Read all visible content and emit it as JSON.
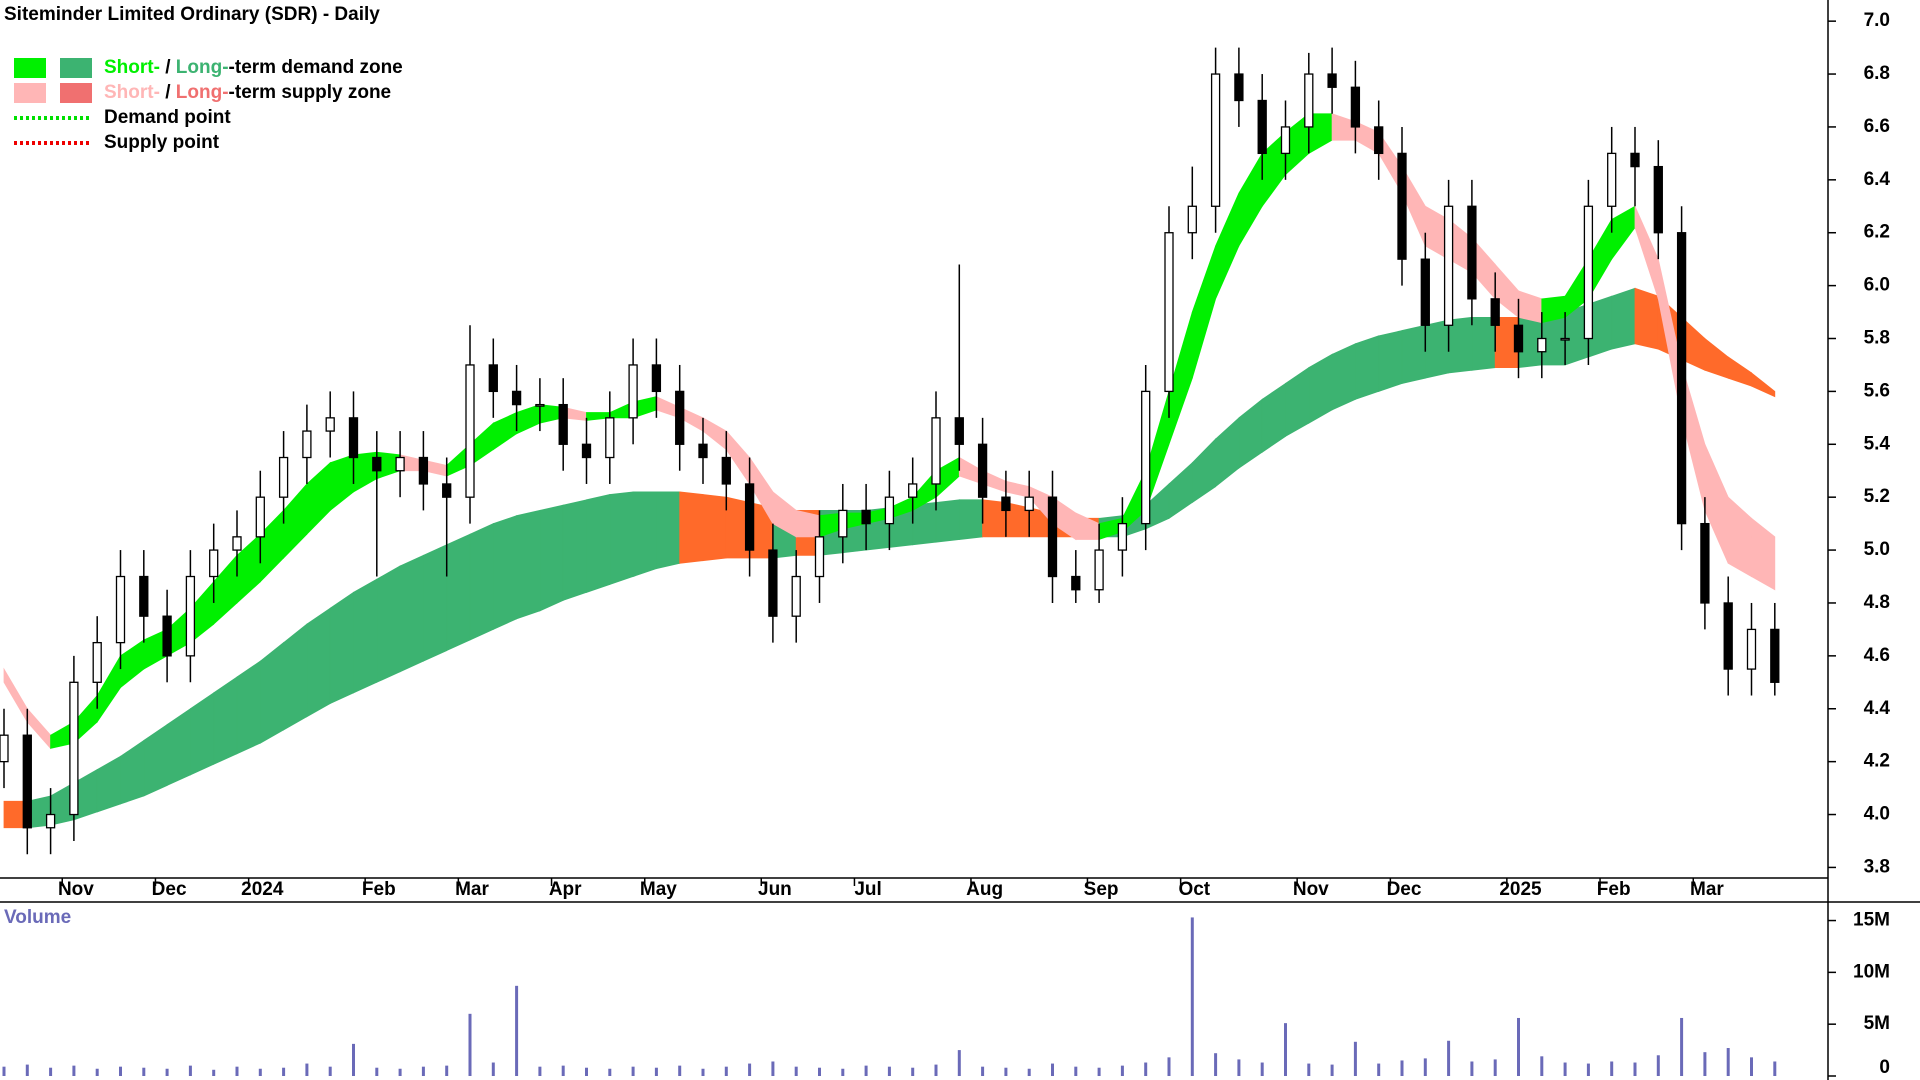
{
  "chart_data": [
    {
      "type": "candlestick",
      "title": "Siteminder Limited Ordinary (SDR) - Daily",
      "categories": [
        null,
        null,
        null,
        "Nov",
        null,
        null,
        null,
        "Dec",
        null,
        null,
        null,
        "2024",
        null,
        null,
        null,
        null,
        "Feb",
        null,
        null,
        null,
        "Mar",
        null,
        null,
        null,
        "Apr",
        null,
        null,
        null,
        "May",
        null,
        null,
        null,
        null,
        "Jun",
        null,
        null,
        null,
        "Jul",
        null,
        null,
        null,
        null,
        "Aug",
        null,
        null,
        null,
        null,
        "Sep",
        null,
        null,
        null,
        "Oct",
        null,
        null,
        null,
        null,
        "Nov",
        null,
        null,
        null,
        "Dec",
        null,
        null,
        null,
        null,
        "2025",
        null,
        null,
        null,
        "Feb",
        null,
        null,
        null,
        "Mar",
        null,
        null,
        null
      ],
      "open": [
        4.2,
        4.3,
        3.95,
        4.0,
        4.5,
        4.65,
        4.9,
        4.75,
        4.6,
        4.9,
        5.0,
        5.05,
        5.2,
        5.35,
        5.45,
        5.5,
        5.35,
        5.3,
        5.35,
        5.25,
        5.2,
        5.7,
        5.6,
        5.55,
        5.55,
        5.4,
        5.35,
        5.5,
        5.7,
        5.6,
        5.4,
        5.35,
        5.25,
        5.0,
        4.75,
        4.9,
        5.05,
        5.15,
        5.1,
        5.2,
        5.25,
        5.5,
        5.4,
        5.2,
        5.15,
        5.2,
        4.9,
        4.85,
        5.0,
        5.1,
        5.6,
        6.2,
        6.3,
        6.8,
        6.7,
        6.5,
        6.6,
        6.8,
        6.75,
        6.6,
        6.5,
        6.1,
        5.85,
        6.3,
        5.95,
        5.85,
        5.75,
        5.8,
        5.8,
        6.3,
        6.5,
        6.45,
        6.2,
        5.1,
        4.8,
        4.55,
        4.7
      ],
      "high": [
        4.4,
        4.4,
        4.1,
        4.6,
        4.75,
        5.0,
        5.0,
        4.85,
        5.0,
        5.1,
        5.15,
        5.3,
        5.45,
        5.55,
        5.6,
        5.6,
        5.45,
        5.45,
        5.45,
        5.35,
        5.85,
        5.8,
        5.7,
        5.65,
        5.65,
        5.5,
        5.6,
        5.8,
        5.8,
        5.7,
        5.5,
        5.45,
        5.35,
        5.1,
        5.0,
        5.15,
        5.25,
        5.25,
        5.3,
        5.35,
        5.6,
        6.08,
        5.5,
        5.3,
        5.3,
        5.3,
        5.0,
        5.1,
        5.2,
        5.7,
        6.3,
        6.45,
        6.9,
        6.9,
        6.8,
        6.7,
        6.88,
        6.9,
        6.85,
        6.7,
        6.6,
        6.2,
        6.4,
        6.4,
        6.05,
        5.95,
        5.9,
        5.9,
        6.4,
        6.6,
        6.6,
        6.55,
        6.3,
        5.2,
        4.9,
        4.8,
        4.8
      ],
      "low": [
        4.1,
        3.85,
        3.85,
        3.9,
        4.4,
        4.55,
        4.65,
        4.5,
        4.5,
        4.8,
        4.9,
        4.95,
        5.1,
        5.25,
        5.35,
        5.25,
        4.9,
        5.2,
        5.15,
        4.9,
        5.1,
        5.5,
        5.45,
        5.45,
        5.3,
        5.25,
        5.25,
        5.4,
        5.5,
        5.3,
        5.25,
        5.15,
        4.9,
        4.65,
        4.65,
        4.8,
        4.95,
        5.0,
        5.0,
        5.1,
        5.15,
        5.3,
        5.1,
        5.05,
        5.05,
        4.8,
        4.8,
        4.8,
        4.9,
        5.0,
        5.5,
        6.1,
        6.2,
        6.6,
        6.4,
        6.4,
        6.5,
        6.65,
        6.5,
        6.4,
        6.0,
        5.75,
        5.75,
        5.85,
        5.75,
        5.65,
        5.65,
        5.7,
        5.7,
        6.2,
        6.3,
        6.1,
        5.0,
        4.7,
        4.45,
        4.45,
        4.45
      ],
      "close": [
        4.3,
        3.95,
        4.0,
        4.5,
        4.65,
        4.9,
        4.75,
        4.6,
        4.9,
        5.0,
        5.05,
        5.2,
        5.35,
        5.45,
        5.5,
        5.35,
        5.3,
        5.35,
        5.25,
        5.2,
        5.7,
        5.6,
        5.55,
        5.55,
        5.4,
        5.35,
        5.5,
        5.7,
        5.6,
        5.4,
        5.35,
        5.25,
        5.0,
        4.75,
        4.9,
        5.05,
        5.15,
        5.1,
        5.2,
        5.25,
        5.5,
        5.4,
        5.2,
        5.15,
        5.2,
        4.9,
        4.85,
        5.0,
        5.1,
        5.6,
        6.2,
        6.3,
        6.8,
        6.7,
        6.5,
        6.6,
        6.8,
        6.75,
        6.6,
        6.5,
        6.1,
        5.85,
        6.3,
        5.95,
        5.85,
        5.75,
        5.8,
        5.8,
        6.3,
        6.5,
        6.45,
        6.2,
        5.1,
        4.8,
        4.55,
        4.7,
        4.5
      ],
      "color": "#000000",
      "long_term_band": {
        "upper": [
          4.05,
          4.05,
          4.07,
          4.12,
          4.17,
          4.22,
          4.28,
          4.34,
          4.4,
          4.46,
          4.52,
          4.58,
          4.65,
          4.72,
          4.78,
          4.84,
          4.89,
          4.94,
          4.98,
          5.02,
          5.06,
          5.1,
          5.13,
          5.15,
          5.17,
          5.19,
          5.21,
          5.22,
          5.22,
          5.22,
          5.21,
          5.2,
          5.18,
          5.16,
          5.15,
          5.15,
          5.15,
          5.15,
          5.16,
          5.17,
          5.18,
          5.19,
          5.19,
          5.18,
          5.16,
          5.14,
          5.12,
          5.12,
          5.13,
          5.17,
          5.25,
          5.33,
          5.42,
          5.5,
          5.57,
          5.63,
          5.69,
          5.74,
          5.78,
          5.81,
          5.83,
          5.85,
          5.87,
          5.88,
          5.88,
          5.88,
          5.89,
          5.9,
          5.93,
          5.96,
          5.99,
          5.96,
          5.88,
          5.8,
          5.73,
          5.67,
          5.6
        ],
        "lower": [
          3.95,
          3.95,
          3.96,
          3.98,
          4.01,
          4.04,
          4.07,
          4.11,
          4.15,
          4.19,
          4.23,
          4.27,
          4.32,
          4.37,
          4.42,
          4.46,
          4.5,
          4.54,
          4.58,
          4.62,
          4.66,
          4.7,
          4.74,
          4.77,
          4.81,
          4.84,
          4.87,
          4.9,
          4.93,
          4.95,
          4.96,
          4.97,
          4.97,
          4.97,
          4.98,
          4.98,
          4.99,
          5.0,
          5.01,
          5.02,
          5.03,
          5.04,
          5.05,
          5.05,
          5.05,
          5.05,
          5.05,
          5.05,
          5.05,
          5.08,
          5.12,
          5.18,
          5.24,
          5.31,
          5.37,
          5.43,
          5.48,
          5.53,
          5.57,
          5.6,
          5.63,
          5.65,
          5.67,
          5.68,
          5.69,
          5.69,
          5.7,
          5.7,
          5.73,
          5.76,
          5.78,
          5.76,
          5.72,
          5.68,
          5.65,
          5.62,
          5.58
        ],
        "rising_color": "#3cb371",
        "falling_color": "#ff6a2a"
      },
      "short_term_band": {
        "upper": [
          4.55,
          4.4,
          4.3,
          4.35,
          4.45,
          4.6,
          4.66,
          4.7,
          4.78,
          4.88,
          4.98,
          5.06,
          5.15,
          5.25,
          5.33,
          5.36,
          5.37,
          5.36,
          5.34,
          5.32,
          5.4,
          5.48,
          5.52,
          5.55,
          5.54,
          5.52,
          5.52,
          5.56,
          5.58,
          5.54,
          5.5,
          5.45,
          5.35,
          5.22,
          5.15,
          5.13,
          5.14,
          5.14,
          5.16,
          5.2,
          5.3,
          5.35,
          5.3,
          5.26,
          5.24,
          5.2,
          5.14,
          5.1,
          5.12,
          5.3,
          5.6,
          5.9,
          6.15,
          6.35,
          6.5,
          6.58,
          6.65,
          6.65,
          6.62,
          6.58,
          6.45,
          6.3,
          6.25,
          6.18,
          6.08,
          5.98,
          5.95,
          5.96,
          6.1,
          6.25,
          6.3,
          6.1,
          5.7,
          5.4,
          5.2,
          5.12,
          5.05
        ],
        "lower": [
          4.5,
          4.35,
          4.25,
          4.27,
          4.35,
          4.48,
          4.55,
          4.6,
          4.65,
          4.72,
          4.8,
          4.88,
          4.97,
          5.06,
          5.15,
          5.22,
          5.27,
          5.3,
          5.3,
          5.28,
          5.32,
          5.38,
          5.44,
          5.48,
          5.5,
          5.49,
          5.5,
          5.5,
          5.53,
          5.5,
          5.45,
          5.38,
          5.25,
          5.1,
          5.05,
          5.05,
          5.08,
          5.1,
          5.12,
          5.15,
          5.2,
          5.28,
          5.25,
          5.22,
          5.2,
          5.1,
          5.04,
          5.04,
          5.07,
          5.15,
          5.4,
          5.65,
          5.95,
          6.15,
          6.3,
          6.42,
          6.5,
          6.55,
          6.55,
          6.5,
          6.35,
          6.15,
          6.1,
          6.05,
          5.95,
          5.88,
          5.86,
          5.88,
          5.95,
          6.1,
          6.22,
          5.95,
          5.5,
          5.15,
          4.95,
          4.9,
          4.85
        ],
        "rising_color": "#00f000",
        "falling_color": "#ffb6b6"
      },
      "legend": [
        {
          "parts": [
            "Short-",
            " / ",
            "Long-",
            "-term demand zone"
          ],
          "colors": [
            "#00f000",
            "#3cb371"
          ]
        },
        {
          "parts": [
            "Short-",
            " / ",
            "Long-",
            "-term supply zone"
          ],
          "colors": [
            "#ffb6b6",
            "#f07070"
          ]
        },
        {
          "label": "Demand point",
          "color": "#00e000"
        },
        {
          "label": "Supply point",
          "color": "#ee0000"
        }
      ],
      "ylim": [
        3.76,
        7.08
      ],
      "yticks": [
        3.8,
        {
          "value": 4,
          "label": "4.0"
        },
        4.2,
        4.4,
        4.6,
        4.8,
        {
          "value": 5,
          "label": "5.0"
        },
        5.2,
        5.4,
        5.6,
        5.8,
        {
          "value": 6,
          "label": "6.0"
        },
        6.2,
        6.4,
        6.6,
        6.8,
        {
          "value": 7,
          "label": "7.0"
        }
      ]
    },
    {
      "type": "bar",
      "title": "Volume",
      "color": "#6a6ab8",
      "values": [
        900000,
        1100000,
        800000,
        1000000,
        700000,
        900000,
        800000,
        700000,
        1000000,
        600000,
        900000,
        700000,
        800000,
        1200000,
        900000,
        3100000,
        800000,
        700000,
        900000,
        1000000,
        6000000,
        1300000,
        8700000,
        900000,
        1000000,
        800000,
        700000,
        900000,
        800000,
        1000000,
        700000,
        900000,
        1200000,
        1400000,
        900000,
        800000,
        700000,
        1000000,
        900000,
        800000,
        1100000,
        2500000,
        900000,
        800000,
        700000,
        1200000,
        900000,
        800000,
        1000000,
        1300000,
        1800000,
        15300000,
        2200000,
        1600000,
        1300000,
        5100000,
        1200000,
        1100000,
        3300000,
        1200000,
        1500000,
        1700000,
        3400000,
        1400000,
        1600000,
        5600000,
        1900000,
        1300000,
        1200000,
        1400000,
        1300000,
        2000000,
        5600000,
        2300000,
        2700000,
        1800000,
        1400000
      ],
      "ylim": [
        0,
        16500000
      ],
      "yticks": [
        0,
        {
          "value": 5000000,
          "label": "5M"
        },
        {
          "value": 10000000,
          "label": "10M"
        },
        {
          "value": 15000000,
          "label": "15M"
        }
      ]
    }
  ]
}
